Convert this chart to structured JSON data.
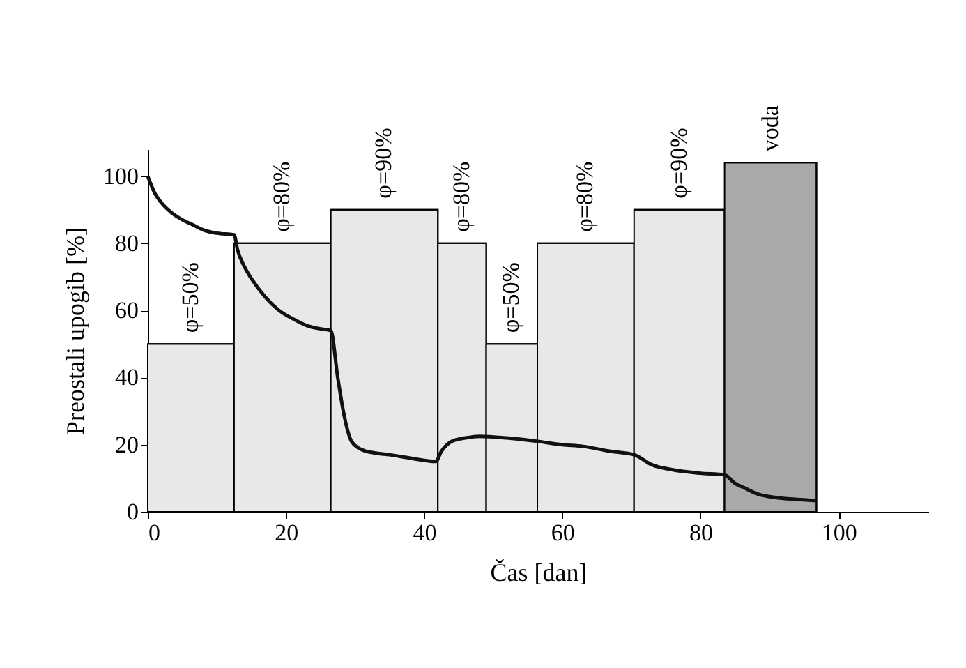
{
  "chart_data": {
    "type": "line",
    "xlabel": "Čas [dan]",
    "ylabel": "Preostali upogib [%]",
    "xlim": [
      0,
      113
    ],
    "ylim": [
      0,
      108
    ],
    "xticks": [
      0,
      20,
      40,
      60,
      80,
      100
    ],
    "yticks": [
      0,
      20,
      40,
      60,
      80,
      100
    ],
    "grid": false,
    "series": [
      {
        "type": "area",
        "color": "#e8e8e8",
        "x": [
          0,
          12.5
        ],
        "values": [
          50,
          50
        ]
      },
      {
        "type": "area",
        "color": "#e8e8e8",
        "x": [
          12.5,
          26.5
        ],
        "values": [
          80,
          80
        ]
      },
      {
        "type": "area",
        "color": "#e8e8e8",
        "x": [
          26.5,
          42
        ],
        "values": [
          90,
          90
        ]
      },
      {
        "type": "area",
        "color": "#e8e8e8",
        "x": [
          42,
          49
        ],
        "values": [
          80,
          80
        ]
      },
      {
        "type": "area",
        "color": "#e8e8e8",
        "x": [
          49,
          56.4
        ],
        "values": [
          50,
          50
        ]
      },
      {
        "type": "area",
        "color": "#e8e8e8",
        "x": [
          56.4,
          70.4
        ],
        "values": [
          80,
          80
        ]
      },
      {
        "type": "area",
        "color": "#e8e8e8",
        "x": [
          70.4,
          83.5
        ],
        "values": [
          90,
          90
        ]
      },
      {
        "type": "area",
        "color": "#a9a9a9",
        "x": [
          83.5,
          96.8
        ],
        "values": [
          104,
          104
        ]
      },
      {
        "color": "#111111",
        "x": [
          0,
          1,
          2,
          3.5,
          5,
          6.5,
          8,
          10,
          12.5,
          13,
          14,
          15,
          17,
          19,
          21,
          23,
          25,
          26.5,
          27.5,
          28.5,
          29.5,
          31,
          33,
          35,
          38,
          41.7,
          42.5,
          44,
          46,
          48,
          52,
          56.4,
          60,
          63,
          67,
          70.4,
          73,
          76,
          80,
          83.5,
          85,
          86.5,
          88,
          90,
          92,
          94,
          96.8
        ],
        "values": [
          100,
          95,
          92,
          89,
          87,
          85.5,
          84,
          83,
          82.5,
          78,
          73,
          69.5,
          64,
          60,
          57.5,
          55.5,
          54.5,
          54,
          40,
          28,
          21,
          18.5,
          17.5,
          17,
          16,
          15,
          18,
          21,
          22,
          22.5,
          22,
          21,
          20,
          19.5,
          18,
          17,
          14,
          12.5,
          11.5,
          11,
          8.5,
          7,
          5.5,
          4.5,
          4,
          3.7,
          3.3
        ]
      }
    ],
    "annotations": [
      "φ=50%",
      "φ=80%",
      "φ=90%",
      "φ=80%",
      "φ=50%",
      "φ=80%",
      "φ=90%",
      "voda"
    ]
  }
}
